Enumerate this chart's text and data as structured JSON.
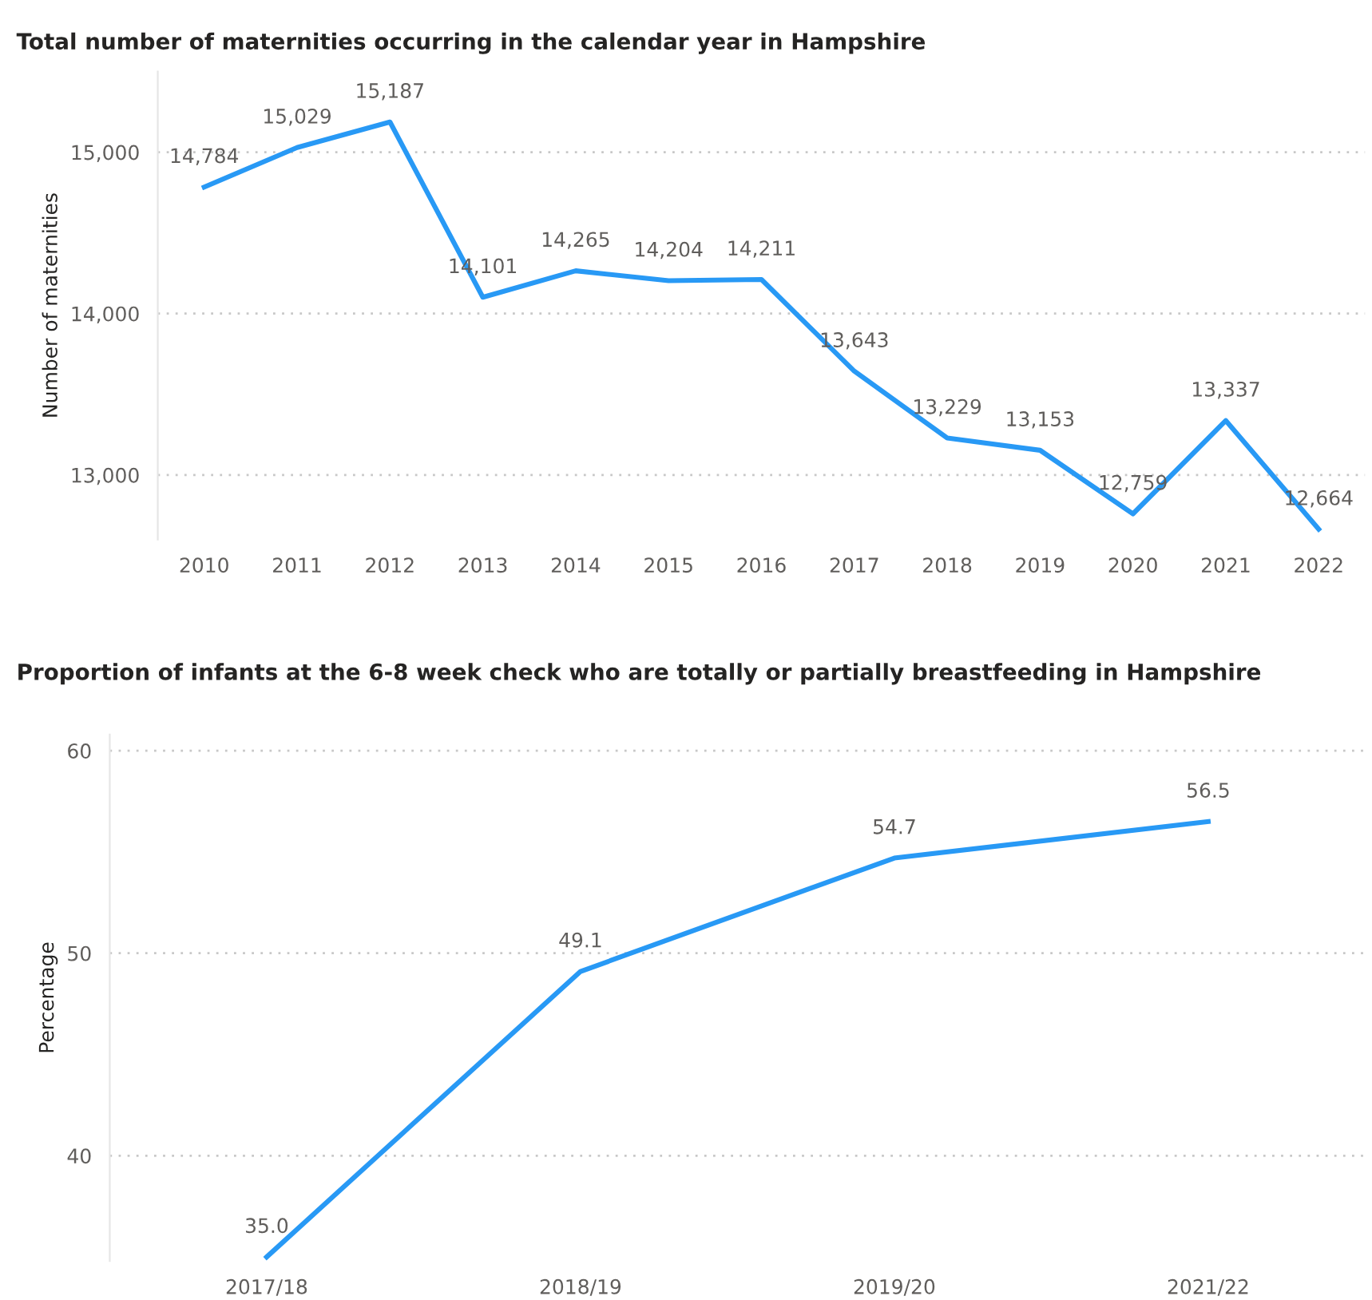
{
  "chart_data": [
    {
      "type": "line",
      "title": "Total number of maternities occurring in the calendar year in Hampshire",
      "ylabel": "Number of maternities",
      "categories": [
        "2010",
        "2011",
        "2012",
        "2013",
        "2014",
        "2015",
        "2016",
        "2017",
        "2018",
        "2019",
        "2020",
        "2021",
        "2022"
      ],
      "series": [
        {
          "color": "#2899f5",
          "values": [
            14784,
            15029,
            15187,
            14101,
            14265,
            14204,
            14211,
            13643,
            13229,
            13153,
            12759,
            13337,
            12664
          ],
          "value_labels": [
            "14,784",
            "15,029",
            "15,187",
            "14,101",
            "14,265",
            "14,204",
            "14,211",
            "13,643",
            "13,229",
            "13,153",
            "12,759",
            "13,337",
            "12,664"
          ]
        }
      ],
      "ylim": [
        12600,
        15500
      ],
      "data_labels": true,
      "yticks": [
        {
          "value": 13000,
          "label": "13,000"
        },
        {
          "value": 14000,
          "label": "14,000"
        },
        {
          "value": 15000,
          "label": "15,000"
        }
      ],
      "grid": "y"
    },
    {
      "type": "line",
      "title": "Proportion of infants at the 6-8 week check who are totally or partially breastfeeding in Hampshire",
      "ylabel": "Percentage",
      "categories": [
        "2017/18",
        "2018/19",
        "2019/20",
        "2021/22"
      ],
      "series": [
        {
          "color": "#2899f5",
          "values": [
            35.0,
            49.1,
            54.7,
            56.5
          ],
          "value_labels": [
            "35.0",
            "49.1",
            "54.7",
            "56.5"
          ]
        }
      ],
      "ylim": [
        34.8,
        60.8
      ],
      "data_labels": true,
      "yticks": [
        40,
        50,
        60
      ],
      "grid": "y"
    }
  ]
}
